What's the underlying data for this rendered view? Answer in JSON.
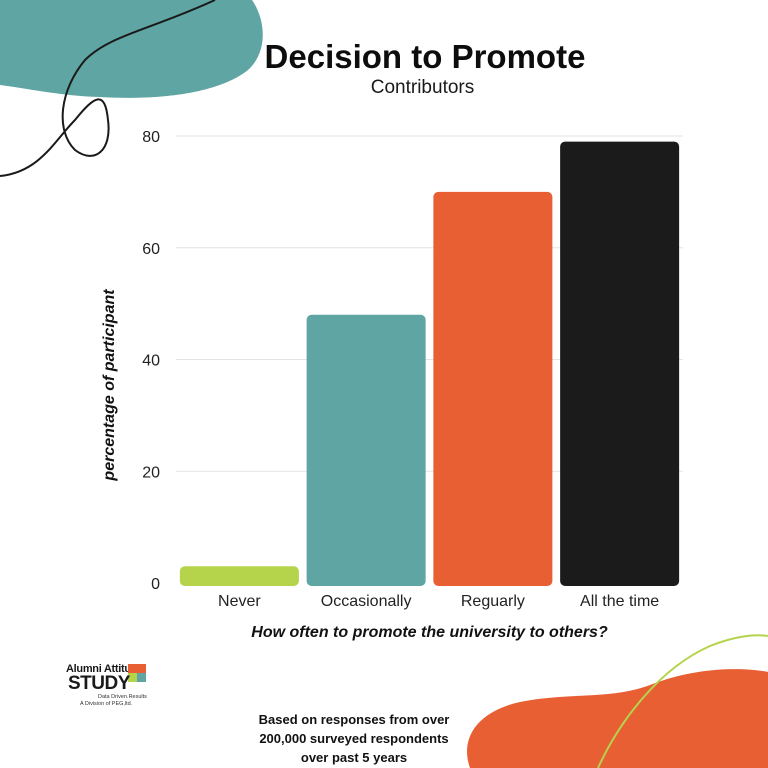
{
  "chart_data": {
    "type": "bar",
    "title": "Decision to Promote",
    "subtitle": "Contributors",
    "categories": [
      "Never",
      "Occasionally",
      "Reguarly",
      "All the time"
    ],
    "values": [
      3,
      48,
      70,
      79
    ],
    "bar_colors": [
      "#b5d34b",
      "#5fa5a3",
      "#e85f34",
      "#1b1b1b"
    ],
    "xlabel": "How often to promote the university to others?",
    "ylabel": "percentage of participant",
    "ylim": [
      0,
      80
    ],
    "yticks": [
      0,
      20,
      40,
      60,
      80
    ],
    "grid": true
  },
  "logo": {
    "line1": "Alumni Attitude",
    "line2": "STUDY",
    "line3": "Data Driven.Results",
    "line4": "A Division of PEG,ltd."
  },
  "footnote": {
    "line1": "Based on responses from over",
    "line2": "200,000 surveyed respondents",
    "line3": "over past 5 years"
  },
  "colors": {
    "teal": "#5fa5a3",
    "orange": "#e85f34",
    "green": "#b5d34b",
    "black": "#1b1b1b"
  }
}
